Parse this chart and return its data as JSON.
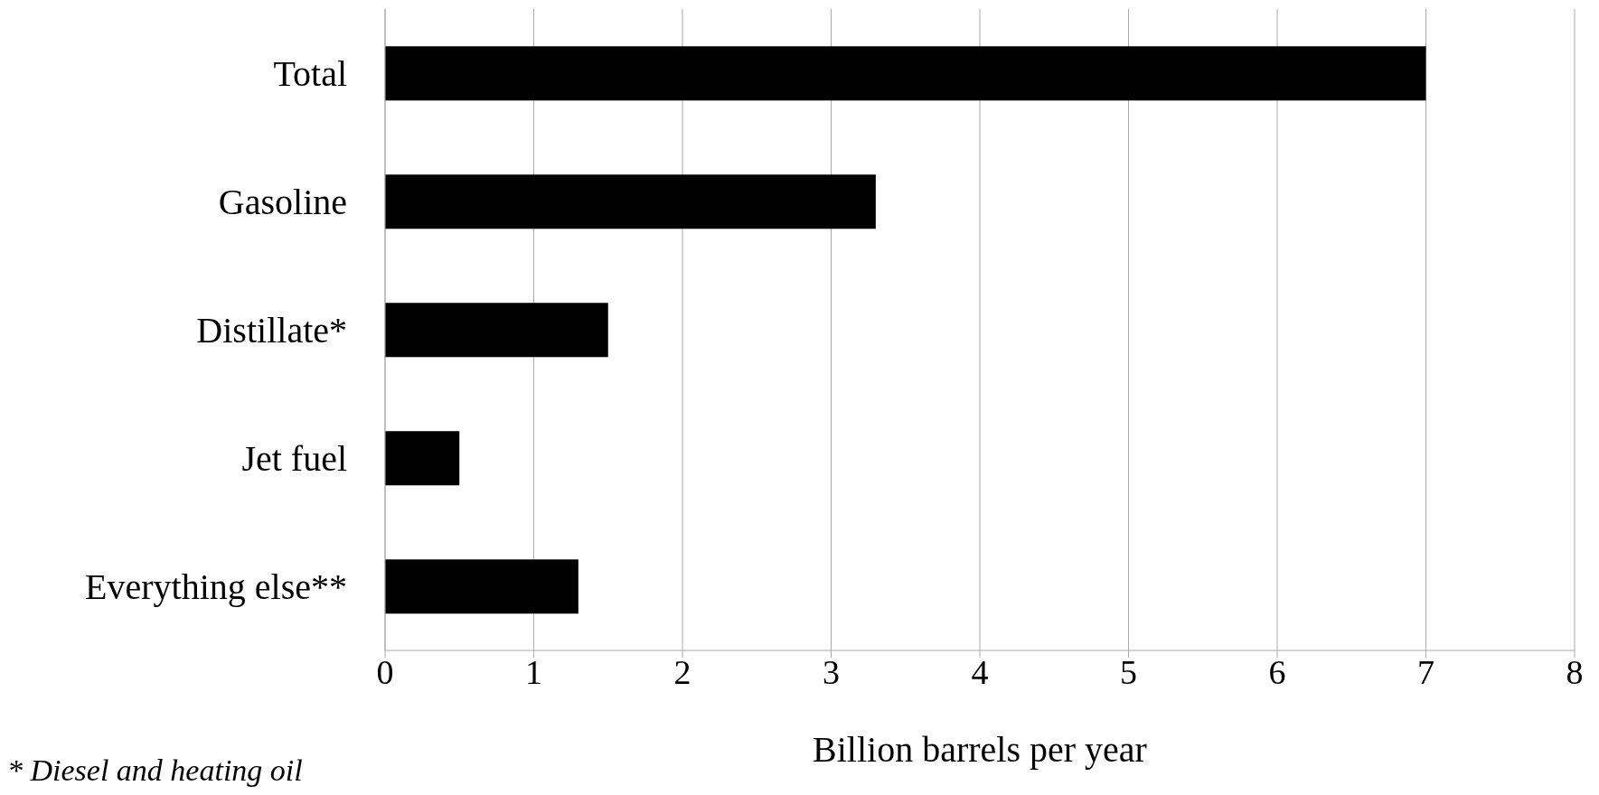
{
  "chart_data": {
    "type": "bar",
    "orientation": "horizontal",
    "categories": [
      "Total",
      "Gasoline",
      "Distillate*",
      "Jet fuel",
      "Everything else**"
    ],
    "values": [
      7.0,
      3.3,
      1.5,
      0.5,
      1.3
    ],
    "color": "#000000",
    "xlim": [
      0,
      8
    ],
    "xticks": [
      0,
      1,
      2,
      3,
      4,
      5,
      6,
      7,
      8
    ],
    "xlabel": "Billion barrels per year",
    "annotations": [
      "* Diesel and heating oil"
    ],
    "grid": "x"
  }
}
